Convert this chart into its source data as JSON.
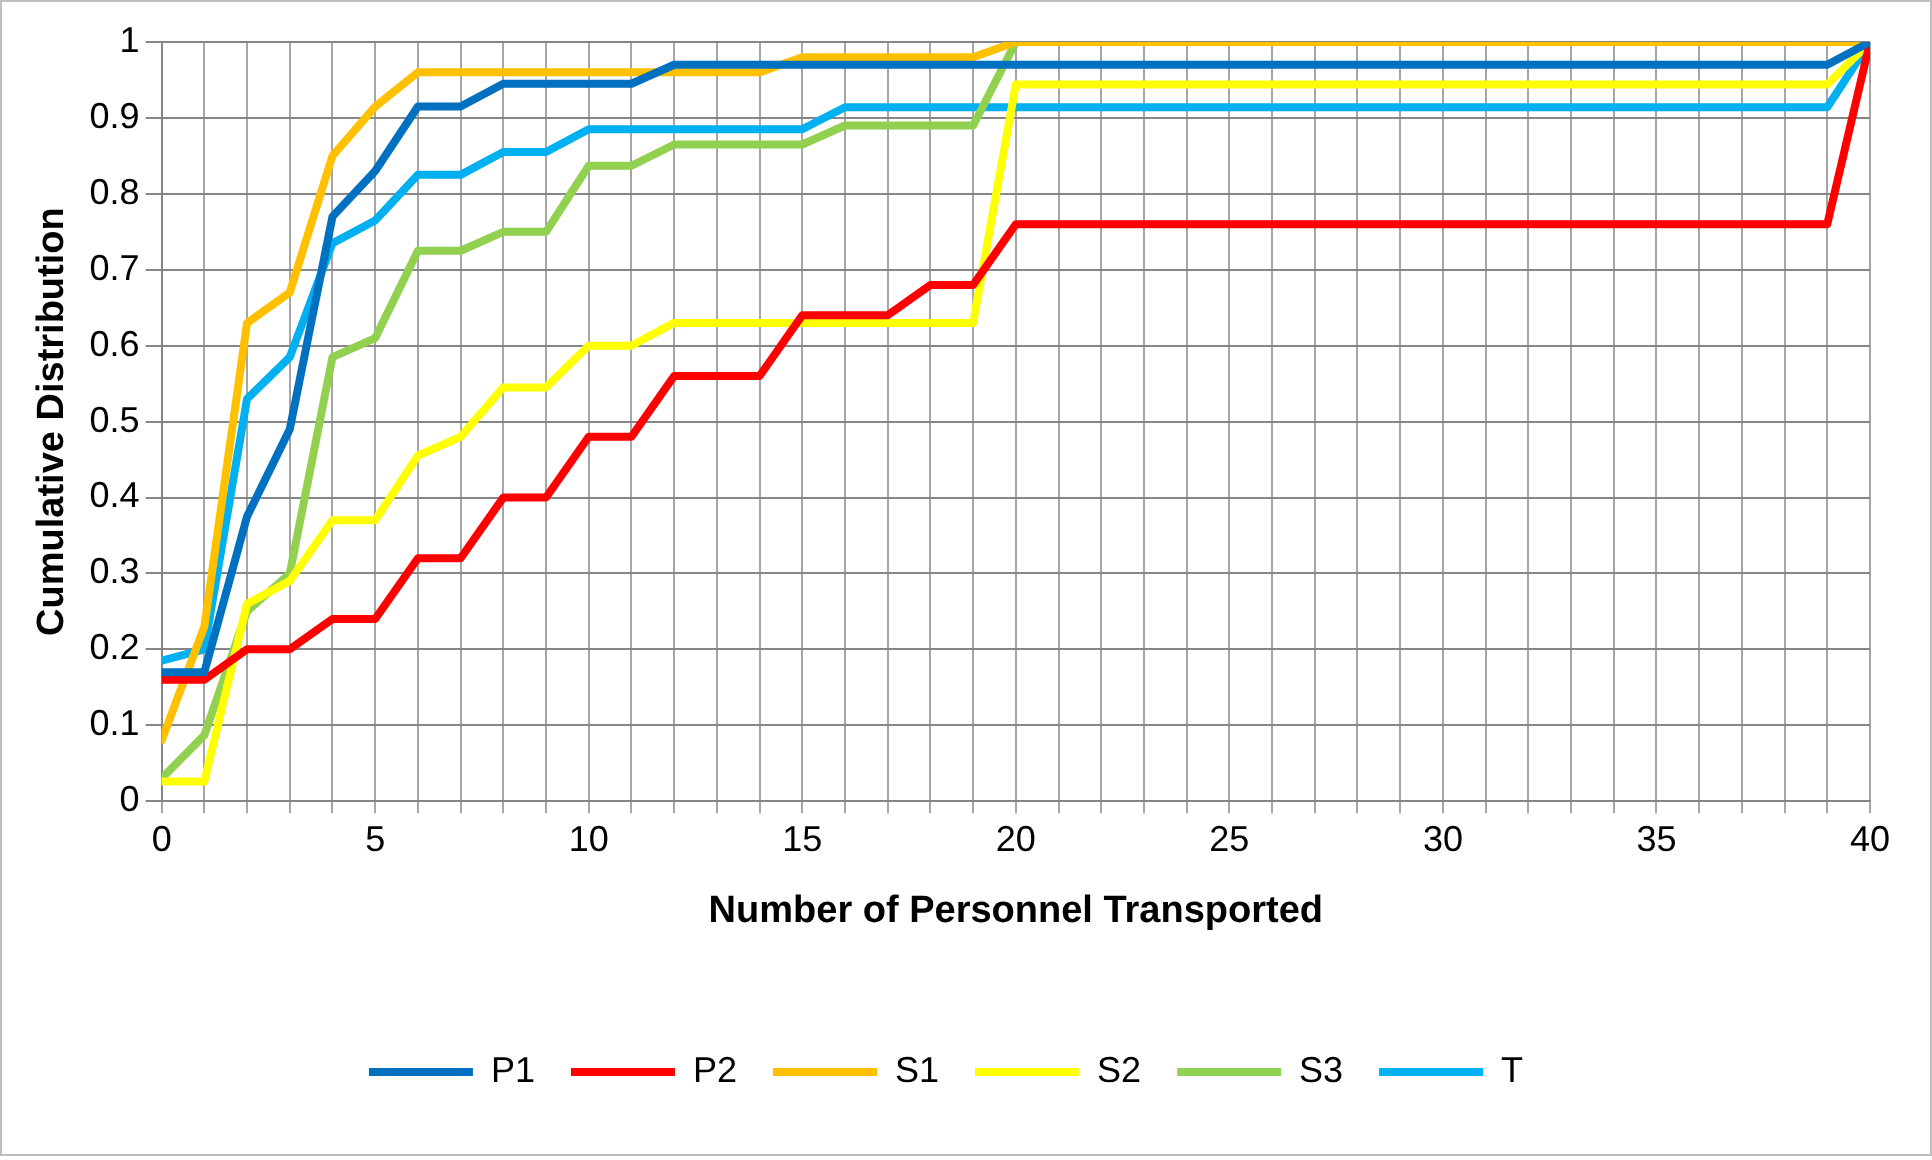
{
  "chart_data": {
    "type": "line",
    "xlabel": "Number of Personnel Transported",
    "ylabel": "Cumulative Distribution",
    "x": [
      0,
      1,
      2,
      3,
      4,
      5,
      6,
      7,
      8,
      9,
      10,
      11,
      12,
      13,
      14,
      15,
      16,
      17,
      18,
      19,
      20,
      39,
      40
    ],
    "series": [
      {
        "name": "P1",
        "color": "#0070c0",
        "values": [
          0.17,
          0.17,
          0.375,
          0.49,
          0.77,
          0.83,
          0.915,
          0.915,
          0.945,
          0.945,
          0.945,
          0.945,
          0.97,
          0.97,
          0.97,
          0.97,
          0.97,
          0.97,
          0.97,
          0.97,
          0.97,
          0.97,
          1
        ]
      },
      {
        "name": "P2",
        "color": "#ff0000",
        "values": [
          0.16,
          0.16,
          0.2,
          0.2,
          0.24,
          0.24,
          0.32,
          0.32,
          0.4,
          0.4,
          0.48,
          0.48,
          0.56,
          0.56,
          0.56,
          0.64,
          0.64,
          0.64,
          0.68,
          0.68,
          0.76,
          0.76,
          1
        ]
      },
      {
        "name": "S1",
        "color": "#ffc000",
        "values": [
          0.08,
          0.23,
          0.63,
          0.67,
          0.85,
          0.915,
          0.96,
          0.96,
          0.96,
          0.96,
          0.96,
          0.96,
          0.96,
          0.96,
          0.96,
          0.98,
          0.98,
          0.98,
          0.98,
          0.98,
          1,
          1,
          1
        ]
      },
      {
        "name": "S2",
        "color": "#ffff00",
        "values": [
          0.026,
          0.026,
          0.26,
          0.29,
          0.37,
          0.37,
          0.455,
          0.48,
          0.545,
          0.545,
          0.6,
          0.6,
          0.63,
          0.63,
          0.63,
          0.63,
          0.63,
          0.63,
          0.63,
          0.63,
          0.944,
          0.944,
          1
        ]
      },
      {
        "name": "S3",
        "color": "#92d050",
        "values": [
          0.03,
          0.087,
          0.25,
          0.3,
          0.585,
          0.61,
          0.725,
          0.725,
          0.75,
          0.75,
          0.837,
          0.837,
          0.865,
          0.865,
          0.865,
          0.865,
          0.89,
          0.89,
          0.89,
          0.89,
          1,
          1,
          1
        ]
      },
      {
        "name": "T",
        "color": "#00b0f0",
        "values": [
          0.185,
          0.2,
          0.53,
          0.585,
          0.735,
          0.765,
          0.825,
          0.825,
          0.855,
          0.855,
          0.885,
          0.885,
          0.885,
          0.885,
          0.885,
          0.885,
          0.914,
          0.914,
          0.914,
          0.914,
          0.914,
          0.914,
          1
        ]
      }
    ],
    "xlim": [
      0,
      40
    ],
    "xticks": [
      0,
      {
        "value": 1,
        "label": null
      },
      {
        "value": 2,
        "label": null
      },
      {
        "value": 3,
        "label": null
      },
      {
        "value": 4,
        "label": null
      },
      5,
      {
        "value": 6,
        "label": null
      },
      {
        "value": 7,
        "label": null
      },
      {
        "value": 8,
        "label": null
      },
      {
        "value": 9,
        "label": null
      },
      10,
      {
        "value": 11,
        "label": null
      },
      {
        "value": 12,
        "label": null
      },
      {
        "value": 13,
        "label": null
      },
      {
        "value": 14,
        "label": null
      },
      15,
      {
        "value": 16,
        "label": null
      },
      {
        "value": 17,
        "label": null
      },
      {
        "value": 18,
        "label": null
      },
      {
        "value": 19,
        "label": null
      },
      20,
      {
        "value": 21,
        "label": null
      },
      {
        "value": 22,
        "label": null
      },
      {
        "value": 23,
        "label": null
      },
      {
        "value": 24,
        "label": null
      },
      25,
      {
        "value": 26,
        "label": null
      },
      {
        "value": 27,
        "label": null
      },
      {
        "value": 28,
        "label": null
      },
      {
        "value": 29,
        "label": null
      },
      30,
      {
        "value": 31,
        "label": null
      },
      {
        "value": 32,
        "label": null
      },
      {
        "value": 33,
        "label": null
      },
      {
        "value": 34,
        "label": null
      },
      35,
      {
        "value": 36,
        "label": null
      },
      {
        "value": 37,
        "label": null
      },
      {
        "value": 38,
        "label": null
      },
      {
        "value": 39,
        "label": null
      },
      40
    ],
    "ylim": [
      0,
      1
    ],
    "yticks": [
      0,
      0.1,
      0.2,
      0.3,
      0.4,
      0.5,
      0.6,
      0.7,
      0.8,
      0.9,
      1
    ],
    "grid": true,
    "legend": "bottom",
    "marker": "none",
    "line_style": "solid"
  }
}
